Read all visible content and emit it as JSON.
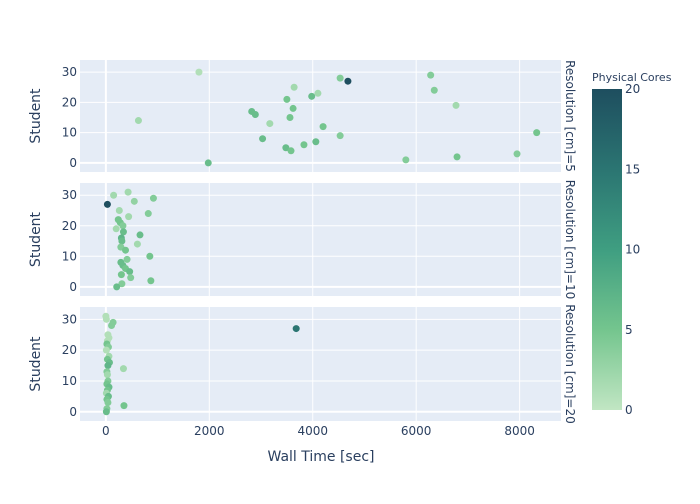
{
  "chart_data": {
    "type": "scatter",
    "xlabel": "Wall Time [sec]",
    "ylabel": "Student",
    "xlim": [
      -500,
      8800
    ],
    "ylim": [
      -3,
      34
    ],
    "x_ticks": [
      0,
      2000,
      4000,
      6000,
      8000
    ],
    "x_tick_labels": [
      "0",
      "2000",
      "4000",
      "6000",
      "8000"
    ],
    "y_ticks": [
      0,
      10,
      20,
      30
    ],
    "y_tick_labels": [
      "0",
      "10",
      "20",
      "30"
    ],
    "grid": true,
    "colorbar": {
      "title": "Physical Cores",
      "min": 0,
      "max": 20,
      "ticks": [
        0,
        5,
        10,
        15,
        20
      ],
      "tick_labels": [
        "0",
        "5",
        "10",
        "15",
        "20"
      ],
      "colors": [
        "#c1e6c3",
        "#74c58e",
        "#3f9e81",
        "#2b7572",
        "#1e4e5f"
      ]
    },
    "panels": [
      {
        "facet_label": "Resolution [cm]=5",
        "points": [
          {
            "x": 1800,
            "y": 30,
            "c": 1
          },
          {
            "x": 4680,
            "y": 27,
            "c": 20
          },
          {
            "x": 4530,
            "y": 28,
            "c": 4
          },
          {
            "x": 6280,
            "y": 29,
            "c": 4
          },
          {
            "x": 3640,
            "y": 25,
            "c": 2
          },
          {
            "x": 6350,
            "y": 24,
            "c": 4
          },
          {
            "x": 4100,
            "y": 23,
            "c": 2
          },
          {
            "x": 3980,
            "y": 22,
            "c": 6
          },
          {
            "x": 3500,
            "y": 21,
            "c": 5
          },
          {
            "x": 6770,
            "y": 19,
            "c": 2
          },
          {
            "x": 3620,
            "y": 18,
            "c": 5
          },
          {
            "x": 2820,
            "y": 17,
            "c": 6
          },
          {
            "x": 2890,
            "y": 16,
            "c": 6
          },
          {
            "x": 3560,
            "y": 15,
            "c": 5
          },
          {
            "x": 630,
            "y": 14,
            "c": 2
          },
          {
            "x": 3170,
            "y": 13,
            "c": 2
          },
          {
            "x": 4200,
            "y": 12,
            "c": 5
          },
          {
            "x": 8330,
            "y": 10,
            "c": 5
          },
          {
            "x": 4530,
            "y": 9,
            "c": 4
          },
          {
            "x": 3030,
            "y": 8,
            "c": 6
          },
          {
            "x": 4060,
            "y": 7,
            "c": 6
          },
          {
            "x": 3830,
            "y": 6,
            "c": 5
          },
          {
            "x": 3480,
            "y": 5,
            "c": 6
          },
          {
            "x": 3580,
            "y": 4,
            "c": 5
          },
          {
            "x": 7950,
            "y": 3,
            "c": 4
          },
          {
            "x": 6790,
            "y": 2,
            "c": 5
          },
          {
            "x": 5800,
            "y": 1,
            "c": 4
          },
          {
            "x": 1980,
            "y": 0,
            "c": 6
          }
        ]
      },
      {
        "facet_label": "Resolution [cm]=10",
        "points": [
          {
            "x": 430,
            "y": 31,
            "c": 2
          },
          {
            "x": 150,
            "y": 30,
            "c": 2
          },
          {
            "x": 920,
            "y": 29,
            "c": 4
          },
          {
            "x": 550,
            "y": 28,
            "c": 3
          },
          {
            "x": 30,
            "y": 27,
            "c": 20
          },
          {
            "x": 260,
            "y": 25,
            "c": 2
          },
          {
            "x": 820,
            "y": 24,
            "c": 4
          },
          {
            "x": 440,
            "y": 23,
            "c": 2
          },
          {
            "x": 240,
            "y": 22,
            "c": 5
          },
          {
            "x": 280,
            "y": 21,
            "c": 5
          },
          {
            "x": 330,
            "y": 20,
            "c": 4
          },
          {
            "x": 200,
            "y": 19,
            "c": 2
          },
          {
            "x": 340,
            "y": 18,
            "c": 6
          },
          {
            "x": 660,
            "y": 17,
            "c": 6
          },
          {
            "x": 300,
            "y": 16,
            "c": 7
          },
          {
            "x": 310,
            "y": 15,
            "c": 6
          },
          {
            "x": 610,
            "y": 14,
            "c": 2
          },
          {
            "x": 290,
            "y": 13,
            "c": 4
          },
          {
            "x": 380,
            "y": 12,
            "c": 5
          },
          {
            "x": 850,
            "y": 10,
            "c": 5
          },
          {
            "x": 410,
            "y": 9,
            "c": 4
          },
          {
            "x": 290,
            "y": 8,
            "c": 6
          },
          {
            "x": 330,
            "y": 7,
            "c": 6
          },
          {
            "x": 380,
            "y": 6,
            "c": 5
          },
          {
            "x": 460,
            "y": 5,
            "c": 6
          },
          {
            "x": 300,
            "y": 4,
            "c": 5
          },
          {
            "x": 480,
            "y": 3,
            "c": 4
          },
          {
            "x": 870,
            "y": 2,
            "c": 5
          },
          {
            "x": 310,
            "y": 1,
            "c": 4
          },
          {
            "x": 210,
            "y": 0,
            "c": 6
          }
        ]
      },
      {
        "facet_label": "Resolution [cm]=20",
        "points": [
          {
            "x": 0,
            "y": 31,
            "c": 1
          },
          {
            "x": 10,
            "y": 30,
            "c": 1
          },
          {
            "x": 140,
            "y": 29,
            "c": 4
          },
          {
            "x": 110,
            "y": 28,
            "c": 4
          },
          {
            "x": 3680,
            "y": 27,
            "c": 15
          },
          {
            "x": 40,
            "y": 25,
            "c": 1
          },
          {
            "x": 60,
            "y": 24,
            "c": 1
          },
          {
            "x": 30,
            "y": 23,
            "c": 1
          },
          {
            "x": 20,
            "y": 22,
            "c": 5
          },
          {
            "x": 50,
            "y": 21,
            "c": 4
          },
          {
            "x": 10,
            "y": 20,
            "c": 1
          },
          {
            "x": 60,
            "y": 18,
            "c": 2
          },
          {
            "x": 30,
            "y": 17,
            "c": 5
          },
          {
            "x": 70,
            "y": 16,
            "c": 6
          },
          {
            "x": 40,
            "y": 15,
            "c": 7
          },
          {
            "x": 340,
            "y": 14,
            "c": 2
          },
          {
            "x": 20,
            "y": 13,
            "c": 4
          },
          {
            "x": 30,
            "y": 12,
            "c": 2
          },
          {
            "x": 40,
            "y": 10,
            "c": 4
          },
          {
            "x": 20,
            "y": 9,
            "c": 5
          },
          {
            "x": 60,
            "y": 8,
            "c": 6
          },
          {
            "x": 30,
            "y": 7,
            "c": 5
          },
          {
            "x": 10,
            "y": 6,
            "c": 2
          },
          {
            "x": 50,
            "y": 5,
            "c": 6
          },
          {
            "x": 20,
            "y": 4,
            "c": 5
          },
          {
            "x": 40,
            "y": 3,
            "c": 4
          },
          {
            "x": 350,
            "y": 2,
            "c": 5
          },
          {
            "x": 20,
            "y": 1,
            "c": 4
          },
          {
            "x": 10,
            "y": 0,
            "c": 6
          }
        ]
      }
    ]
  }
}
